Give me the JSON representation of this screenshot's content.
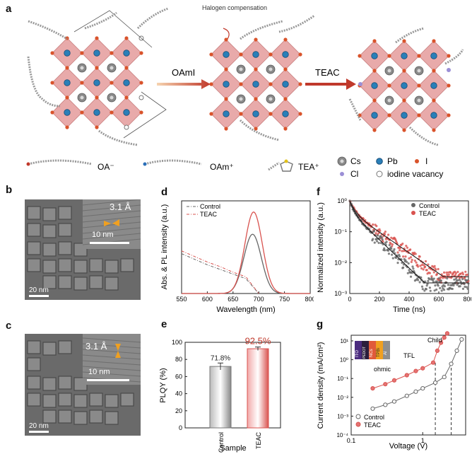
{
  "panels": {
    "a": "a",
    "b": "b",
    "c": "c",
    "d": "d",
    "e": "e",
    "f": "f",
    "g": "g"
  },
  "schematic": {
    "halogen_note": "Halogen compensation",
    "step1": "OAmI",
    "step2": "TEAC",
    "ligands": [
      "OA⁻",
      "OAm⁺",
      "TEA⁺"
    ],
    "legend": [
      "Cs",
      "Pb",
      "I",
      "Cl",
      "iodine vacancy"
    ],
    "colors": {
      "octahedron": "#e6a6a6",
      "pb": "#2a7fb8",
      "i": "#d9532b",
      "cs": "#8a8a8a",
      "cl": "#9b8fd6"
    }
  },
  "tem_b": {
    "lattice": "3.1 Å",
    "inset_scale": "10 nm",
    "scale": "20 nm"
  },
  "tem_c": {
    "lattice": "3.1 Å",
    "inset_scale": "10 nm",
    "scale": "20 nm"
  },
  "colors": {
    "control": "#666666",
    "teac": "#d9534f"
  },
  "chart_data": [
    {
      "id": "d",
      "type": "line",
      "xlabel": "Wavelength (nm)",
      "ylabel": "Abs. & PL intensity (a.u.)",
      "xlim": [
        550,
        800
      ],
      "xticks": [
        550,
        600,
        650,
        700,
        750,
        800
      ],
      "legend": [
        "Control",
        "TEAC"
      ],
      "series": [
        {
          "name": "Control",
          "kind": "abs",
          "x": [
            550,
            575,
            600,
            625,
            650,
            675,
            700
          ],
          "y": [
            0.43,
            0.37,
            0.31,
            0.26,
            0.21,
            0.16,
            0.0
          ]
        },
        {
          "name": "TEAC",
          "kind": "abs",
          "x": [
            550,
            575,
            600,
            625,
            650,
            675,
            700
          ],
          "y": [
            0.46,
            0.4,
            0.34,
            0.29,
            0.23,
            0.18,
            0.0
          ]
        },
        {
          "name": "Control",
          "kind": "pl",
          "peak": 688,
          "fwhm": 40,
          "height": 0.64
        },
        {
          "name": "TEAC",
          "kind": "pl",
          "peak": 690,
          "fwhm": 40,
          "height": 0.88
        }
      ]
    },
    {
      "id": "e",
      "type": "bar",
      "xlabel": "Sample",
      "ylabel": "PLQY (%)",
      "ylim": [
        0,
        100
      ],
      "yticks": [
        0,
        20,
        40,
        60,
        80,
        100
      ],
      "categories": [
        "Control",
        "TEAC"
      ],
      "values": [
        71.8,
        92.5
      ],
      "errors": [
        4,
        2
      ],
      "labels": [
        "71.8%",
        "92.5%"
      ]
    },
    {
      "id": "f",
      "type": "scatter",
      "xlabel": "Time (ns)",
      "ylabel": "Normalized intensity (a.u.)",
      "xlim": [
        0,
        800
      ],
      "xticks": [
        0,
        200,
        400,
        600,
        800
      ],
      "ylog": true,
      "yticks": [
        "10⁰",
        "10⁻¹",
        "10⁻²",
        "10⁻³"
      ],
      "legend": [
        "Control",
        "TEAC"
      ],
      "series": [
        {
          "name": "Control",
          "a1": 0.55,
          "t1": 22,
          "a2": 0.45,
          "t2": 95,
          "floor": 0.0022
        },
        {
          "name": "TEAC",
          "a1": 0.55,
          "t1": 28,
          "a2": 0.45,
          "t2": 130,
          "floor": 0.0035
        }
      ]
    },
    {
      "id": "g",
      "type": "line",
      "xlabel": "Voltage (V)",
      "ylabel": "Current density (mA/cm²)",
      "xlog": true,
      "ylog": true,
      "xticks": [
        "0.1",
        "1"
      ],
      "yticks": [
        "10¹",
        "10⁰",
        "10⁻¹",
        "10⁻²",
        "10⁻³",
        "10⁻⁴"
      ],
      "legend": [
        "Control",
        "TEAC"
      ],
      "annotations": [
        "Child",
        "TFL",
        "ohmic"
      ],
      "device_layers": [
        "ITO",
        "PEDOT",
        "NCs",
        "TPBi",
        "Al"
      ],
      "series": [
        {
          "name": "Control",
          "x": [
            0.2,
            0.3,
            0.4,
            0.6,
            0.8,
            1.0,
            1.5,
            2.0,
            2.5,
            3.0,
            3.5
          ],
          "y": [
            0.0025,
            0.004,
            0.006,
            0.012,
            0.02,
            0.03,
            0.06,
            0.12,
            0.6,
            3,
            12
          ]
        },
        {
          "name": "TEAC",
          "x": [
            0.2,
            0.3,
            0.4,
            0.6,
            0.8,
            1.0,
            1.4,
            1.6,
            1.8,
            2.0,
            2.2
          ],
          "y": [
            0.03,
            0.05,
            0.08,
            0.15,
            0.25,
            0.35,
            0.7,
            3,
            8,
            15,
            25
          ]
        }
      ]
    }
  ]
}
